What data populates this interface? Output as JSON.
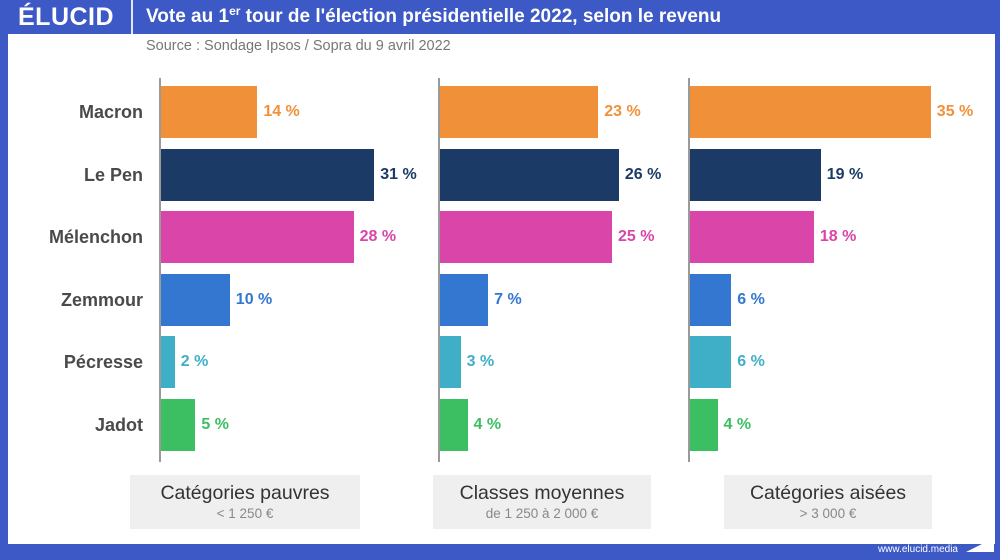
{
  "header": {
    "logo": "ÉLUCID",
    "title_prefix": "Vote au 1",
    "title_sup": "er",
    "title_suffix": " tour de l'élection présidentielle 2022, selon le revenu",
    "subtitle": "Source : Sondage Ipsos / Sopra du 9 avril 2022"
  },
  "footer": {
    "url": "www.elucid.media"
  },
  "chart_data": {
    "type": "bar",
    "orientation": "horizontal",
    "title": "Vote au 1er tour de l'élection présidentielle 2022, selon le revenu",
    "subtitle": "Source : Sondage Ipsos / Sopra du 9 avril 2022",
    "unit": "%",
    "categories": [
      "Macron",
      "Le Pen",
      "Mélenchon",
      "Zemmour",
      "Pécresse",
      "Jadot"
    ],
    "colors": [
      "#f0913a",
      "#1b3a66",
      "#d945a8",
      "#3477d0",
      "#3fafc8",
      "#3cbf63"
    ],
    "xlim": [
      0,
      35
    ],
    "grid": false,
    "legend": "none",
    "panels": [
      {
        "name": "Catégories pauvres",
        "sub": "< 1 250 €",
        "values": [
          14,
          31,
          28,
          10,
          2,
          5
        ]
      },
      {
        "name": "Classes moyennes",
        "sub": "de 1 250 à 2 000 €",
        "values": [
          23,
          26,
          25,
          7,
          3,
          4
        ]
      },
      {
        "name": "Catégories aisées",
        "sub": "> 3 000 €",
        "values": [
          35,
          19,
          18,
          6,
          6,
          4
        ]
      }
    ]
  }
}
